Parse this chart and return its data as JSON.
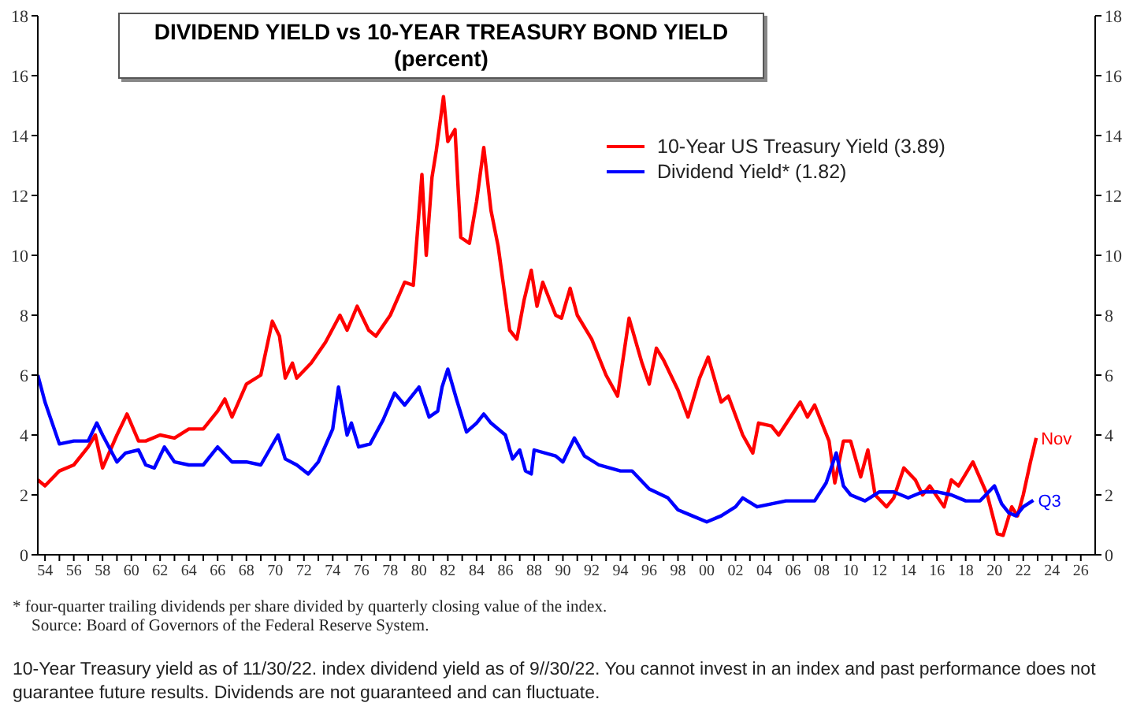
{
  "chart_data": {
    "type": "line",
    "title": "DIVIDEND YIELD vs 10-YEAR TREASURY BOND YIELD",
    "subtitle": "(percent)",
    "xlim": [
      1953.5,
      2027
    ],
    "xticks": [
      {
        "value": 1954,
        "label": "54"
      },
      {
        "value": 1955,
        "label": null
      },
      {
        "value": 1956,
        "label": "56"
      },
      {
        "value": 1957,
        "label": null
      },
      {
        "value": 1958,
        "label": "58"
      },
      {
        "value": 1959,
        "label": null
      },
      {
        "value": 1960,
        "label": "60"
      },
      {
        "value": 1961,
        "label": null
      },
      {
        "value": 1962,
        "label": "62"
      },
      {
        "value": 1963,
        "label": null
      },
      {
        "value": 1964,
        "label": "64"
      },
      {
        "value": 1965,
        "label": null
      },
      {
        "value": 1966,
        "label": "66"
      },
      {
        "value": 1967,
        "label": null
      },
      {
        "value": 1968,
        "label": "68"
      },
      {
        "value": 1969,
        "label": null
      },
      {
        "value": 1970,
        "label": "70"
      },
      {
        "value": 1971,
        "label": null
      },
      {
        "value": 1972,
        "label": "72"
      },
      {
        "value": 1973,
        "label": null
      },
      {
        "value": 1974,
        "label": "74"
      },
      {
        "value": 1975,
        "label": null
      },
      {
        "value": 1976,
        "label": "76"
      },
      {
        "value": 1977,
        "label": null
      },
      {
        "value": 1978,
        "label": "78"
      },
      {
        "value": 1979,
        "label": null
      },
      {
        "value": 1980,
        "label": "80"
      },
      {
        "value": 1981,
        "label": null
      },
      {
        "value": 1982,
        "label": "82"
      },
      {
        "value": 1983,
        "label": null
      },
      {
        "value": 1984,
        "label": "84"
      },
      {
        "value": 1985,
        "label": null
      },
      {
        "value": 1986,
        "label": "86"
      },
      {
        "value": 1987,
        "label": null
      },
      {
        "value": 1988,
        "label": "88"
      },
      {
        "value": 1989,
        "label": null
      },
      {
        "value": 1990,
        "label": "90"
      },
      {
        "value": 1991,
        "label": null
      },
      {
        "value": 1992,
        "label": "92"
      },
      {
        "value": 1993,
        "label": null
      },
      {
        "value": 1994,
        "label": "94"
      },
      {
        "value": 1995,
        "label": null
      },
      {
        "value": 1996,
        "label": "96"
      },
      {
        "value": 1997,
        "label": null
      },
      {
        "value": 1998,
        "label": "98"
      },
      {
        "value": 1999,
        "label": null
      },
      {
        "value": 2000,
        "label": "00"
      },
      {
        "value": 2001,
        "label": null
      },
      {
        "value": 2002,
        "label": "02"
      },
      {
        "value": 2003,
        "label": null
      },
      {
        "value": 2004,
        "label": "04"
      },
      {
        "value": 2005,
        "label": null
      },
      {
        "value": 2006,
        "label": "06"
      },
      {
        "value": 2007,
        "label": null
      },
      {
        "value": 2008,
        "label": "08"
      },
      {
        "value": 2009,
        "label": null
      },
      {
        "value": 2010,
        "label": "10"
      },
      {
        "value": 2011,
        "label": null
      },
      {
        "value": 2012,
        "label": "12"
      },
      {
        "value": 2013,
        "label": null
      },
      {
        "value": 2014,
        "label": "14"
      },
      {
        "value": 2015,
        "label": null
      },
      {
        "value": 2016,
        "label": "16"
      },
      {
        "value": 2017,
        "label": null
      },
      {
        "value": 2018,
        "label": "18"
      },
      {
        "value": 2019,
        "label": null
      },
      {
        "value": 2020,
        "label": "20"
      },
      {
        "value": 2021,
        "label": null
      },
      {
        "value": 2022,
        "label": "22"
      },
      {
        "value": 2023,
        "label": null
      },
      {
        "value": 2024,
        "label": "24"
      },
      {
        "value": 2025,
        "label": null
      },
      {
        "value": 2026,
        "label": "26"
      }
    ],
    "ylim": [
      0,
      18
    ],
    "yticks": [
      0,
      2,
      4,
      6,
      8,
      10,
      12,
      14,
      16,
      18
    ],
    "y2lim": [
      0,
      18
    ],
    "y2ticks": [
      0,
      2,
      4,
      6,
      8,
      10,
      12,
      14,
      16,
      18
    ],
    "legend": "top right",
    "grid": false,
    "marker": "none",
    "series": [
      {
        "name": "10-Year US Treasury Yield (3.89)",
        "color": "#ff0000",
        "x": [
          1953.5,
          1954,
          1955,
          1956,
          1957,
          1957.5,
          1958,
          1959,
          1959.7,
          1960.5,
          1961,
          1962,
          1963,
          1964,
          1965,
          1966,
          1966.5,
          1967,
          1968,
          1969,
          1969.8,
          1970.3,
          1970.7,
          1971.2,
          1971.5,
          1972.5,
          1973.5,
          1974.5,
          1975,
          1975.7,
          1976.5,
          1977,
          1978,
          1979,
          1979.6,
          1980.2,
          1980.5,
          1980.9,
          1981.2,
          1981.7,
          1982,
          1982.5,
          1982.9,
          1983.5,
          1984,
          1984.5,
          1985,
          1985.5,
          1986.3,
          1986.8,
          1987.3,
          1987.8,
          1988.2,
          1988.6,
          1989.5,
          1989.9,
          1990.5,
          1991,
          1992,
          1992.5,
          1993,
          1993.8,
          1994.6,
          1995.5,
          1996,
          1996.5,
          1997,
          1998,
          1998.7,
          1999.5,
          2000.1,
          2001,
          2001.5,
          2002.5,
          2003.2,
          2003.6,
          2004.5,
          2005,
          2006.5,
          2007,
          2007.5,
          2008.5,
          2008.9,
          2009.5,
          2010,
          2010.7,
          2011.2,
          2011.7,
          2012.5,
          2013,
          2013.7,
          2014.5,
          2015,
          2015.5,
          2016.5,
          2017,
          2017.5,
          2018.5,
          2019.5,
          2020.2,
          2020.6,
          2021.2,
          2021.6,
          2022,
          2022.5,
          2022.9
        ],
        "values": [
          2.5,
          2.3,
          2.8,
          3.0,
          3.6,
          4.0,
          2.9,
          4.0,
          4.7,
          3.8,
          3.8,
          4.0,
          3.9,
          4.2,
          4.2,
          4.8,
          5.2,
          4.6,
          5.7,
          6.0,
          7.8,
          7.3,
          5.9,
          6.4,
          5.9,
          6.4,
          7.1,
          8.0,
          7.5,
          8.3,
          7.5,
          7.3,
          8.0,
          9.1,
          9.0,
          12.7,
          10.0,
          12.6,
          13.5,
          15.3,
          13.8,
          14.2,
          10.6,
          10.4,
          11.8,
          13.6,
          11.5,
          10.3,
          7.5,
          7.2,
          8.5,
          9.5,
          8.3,
          9.1,
          8.0,
          7.9,
          8.9,
          8.0,
          7.2,
          6.6,
          6.0,
          5.3,
          7.9,
          6.4,
          5.7,
          6.9,
          6.5,
          5.5,
          4.6,
          5.9,
          6.6,
          5.1,
          5.3,
          4.0,
          3.4,
          4.4,
          4.3,
          4.0,
          5.1,
          4.6,
          5.0,
          3.8,
          2.4,
          3.8,
          3.8,
          2.6,
          3.5,
          2.0,
          1.6,
          1.9,
          2.9,
          2.5,
          2.0,
          2.3,
          1.6,
          2.5,
          2.3,
          3.1,
          2.0,
          0.7,
          0.65,
          1.6,
          1.3,
          2.0,
          3.1,
          3.9
        ]
      },
      {
        "name": "Dividend Yield* (1.82)",
        "color": "#0000ff",
        "x": [
          1953.5,
          1954,
          1955,
          1956,
          1957,
          1957.6,
          1958,
          1959,
          1959.6,
          1960.5,
          1961,
          1961.6,
          1962.3,
          1963,
          1964,
          1965,
          1966,
          1967,
          1968,
          1969,
          1970.2,
          1970.7,
          1971.5,
          1972.3,
          1973,
          1974,
          1974.4,
          1975,
          1975.3,
          1975.8,
          1976.6,
          1977.5,
          1978.3,
          1979,
          1980,
          1980.7,
          1981.3,
          1981.6,
          1982,
          1982.6,
          1983.3,
          1984,
          1984.5,
          1985,
          1986,
          1986.5,
          1987,
          1987.4,
          1987.8,
          1988,
          1989.5,
          1990,
          1990.8,
          1991.5,
          1992.5,
          1994,
          1994.8,
          1996,
          1997.3,
          1998,
          1999,
          2000,
          2001,
          2002,
          2002.5,
          2003.5,
          2004.5,
          2005.5,
          2007.5,
          2008.3,
          2009,
          2009.5,
          2010,
          2011,
          2012,
          2013,
          2014,
          2015,
          2016,
          2017,
          2018,
          2019,
          2020,
          2020.5,
          2021,
          2021.5,
          2022,
          2022.7
        ],
        "values": [
          6.0,
          5.1,
          3.7,
          3.8,
          3.8,
          4.4,
          4.0,
          3.1,
          3.4,
          3.5,
          3.0,
          2.9,
          3.6,
          3.1,
          3.0,
          3.0,
          3.6,
          3.1,
          3.1,
          3.0,
          4.0,
          3.2,
          3.0,
          2.7,
          3.1,
          4.2,
          5.6,
          4.0,
          4.4,
          3.6,
          3.7,
          4.5,
          5.4,
          5.0,
          5.6,
          4.6,
          4.8,
          5.6,
          6.2,
          5.2,
          4.1,
          4.4,
          4.7,
          4.4,
          4.0,
          3.2,
          3.5,
          2.8,
          2.7,
          3.5,
          3.3,
          3.1,
          3.9,
          3.3,
          3.0,
          2.8,
          2.8,
          2.2,
          1.9,
          1.5,
          1.3,
          1.1,
          1.3,
          1.6,
          1.9,
          1.6,
          1.7,
          1.8,
          1.8,
          2.4,
          3.4,
          2.3,
          2.0,
          1.8,
          2.1,
          2.1,
          1.9,
          2.1,
          2.1,
          2.0,
          1.8,
          1.8,
          2.3,
          1.7,
          1.4,
          1.3,
          1.6,
          1.82
        ]
      }
    ],
    "annotations": [
      {
        "text": "Nov",
        "x": 2022.9,
        "y": 3.9
      },
      {
        "text": "Q3",
        "x": 2022.7,
        "y": 1.82
      },
      "* four-quarter trailing dividends per share divided by quarterly closing value of the index.",
      "Source: Board of Governors of the Federal Reserve System.",
      "10-Year Treasury yield as of 11/30/22. index dividend yield as of 9//30/22. You cannot invest in an index and past performance does not guarantee future results. Dividends are not guaranteed and can fluctuate."
    ]
  }
}
